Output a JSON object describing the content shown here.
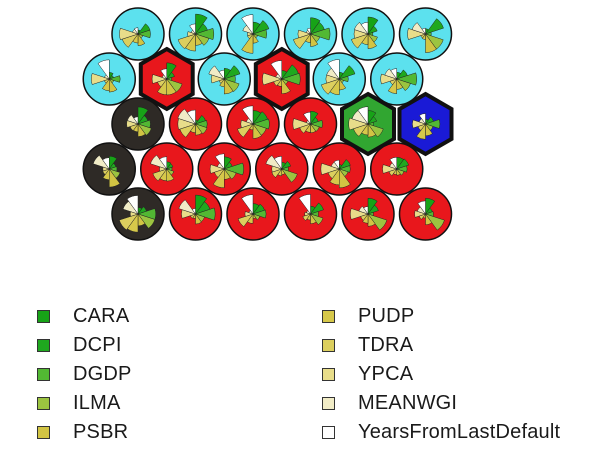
{
  "map": {
    "cluster_colors": {
      "cyan": "#5ce1ee",
      "red": "#e8171c",
      "green": "#31a631",
      "blue": "#1a1ad6",
      "dark": "#2e2a26"
    },
    "rows": [
      [
        "cyan",
        "cyan",
        "cyan",
        "cyan",
        "cyan",
        "cyan"
      ],
      [
        "cyan",
        "red",
        "cyan",
        "red",
        "cyan",
        "cyan"
      ],
      [
        "dark",
        "red",
        "red",
        "red",
        "green",
        "blue"
      ],
      [
        "dark",
        "red",
        "red",
        "red",
        "red",
        "red"
      ],
      [
        "dark",
        "red",
        "red",
        "red",
        "red",
        "red"
      ]
    ],
    "hex_cells": [
      {
        "row": 1,
        "col": 1
      },
      {
        "row": 1,
        "col": 3
      },
      {
        "row": 2,
        "col": 4
      },
      {
        "row": 2,
        "col": 5
      }
    ]
  },
  "legend": {
    "left": [
      {
        "label": "CARA",
        "color": "#17a317"
      },
      {
        "label": "DCPI",
        "color": "#1fa81f"
      },
      {
        "label": "DGDP",
        "color": "#52b833"
      },
      {
        "label": "ILMA",
        "color": "#9cc440"
      },
      {
        "label": "PSBR",
        "color": "#d2c443"
      }
    ],
    "right": [
      {
        "label": "PUDP",
        "color": "#d6c84a"
      },
      {
        "label": "TDRA",
        "color": "#dccf5e"
      },
      {
        "label": "YPCA",
        "color": "#e8dd8a"
      },
      {
        "label": "MEANWGI",
        "color": "#f1ecc6"
      },
      {
        "label": "YearsFromLastDefault",
        "color": "#ffffff"
      }
    ]
  }
}
